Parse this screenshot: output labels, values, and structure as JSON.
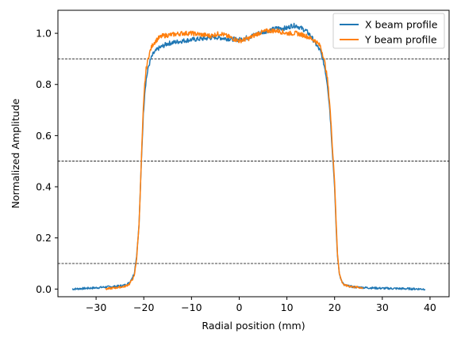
{
  "chart_data": {
    "type": "line",
    "xlabel": "Radial position (mm)",
    "ylabel": "Normalized Amplitude",
    "xlim": [
      -38,
      44
    ],
    "ylim": [
      -0.03,
      1.09
    ],
    "xticks": [
      -30,
      -20,
      -10,
      0,
      10,
      20,
      30,
      40
    ],
    "yticks": [
      0.0,
      0.2,
      0.4,
      0.6,
      0.8,
      1.0
    ],
    "xtick_labels": [
      "−30",
      "−20",
      "−10",
      "0",
      "10",
      "20",
      "30",
      "40"
    ],
    "ytick_labels": [
      "0.0",
      "0.2",
      "0.4",
      "0.6",
      "0.8",
      "1.0"
    ],
    "reference_lines": [
      0.9,
      0.5,
      0.1
    ],
    "grid": false,
    "legend": "top-right",
    "series": [
      {
        "name": "X beam profile",
        "color": "#1f77b4",
        "x": [
          -35,
          -32,
          -30,
          -28,
          -26,
          -24,
          -23,
          -22,
          -21.5,
          -21,
          -20.7,
          -20.4,
          -20.1,
          -19.8,
          -19.5,
          -19,
          -18.5,
          -18,
          -17,
          -15,
          -12,
          -10,
          -7,
          -5,
          -3,
          0,
          2,
          4,
          6,
          8,
          10,
          11,
          12,
          13,
          14,
          15,
          16,
          17,
          17.5,
          18,
          18.5,
          19,
          19.5,
          20,
          20.3,
          20.6,
          21,
          21.5,
          22,
          24,
          27,
          30,
          33,
          36,
          39
        ],
        "y": [
          0.0,
          0.003,
          0.005,
          0.008,
          0.01,
          0.015,
          0.025,
          0.06,
          0.13,
          0.25,
          0.4,
          0.55,
          0.68,
          0.77,
          0.82,
          0.87,
          0.9,
          0.92,
          0.94,
          0.96,
          0.97,
          0.975,
          0.98,
          0.985,
          0.98,
          0.975,
          0.985,
          1.0,
          1.01,
          1.02,
          1.02,
          1.03,
          1.03,
          1.02,
          1.01,
          0.99,
          0.96,
          0.93,
          0.9,
          0.86,
          0.8,
          0.7,
          0.55,
          0.4,
          0.25,
          0.13,
          0.06,
          0.03,
          0.015,
          0.008,
          0.005,
          0.003,
          0.002,
          0.001,
          0.0
        ]
      },
      {
        "name": "Y beam profile",
        "color": "#ff7f0e",
        "x": [
          -28,
          -26,
          -24,
          -23,
          -22,
          -21.5,
          -21,
          -20.7,
          -20.4,
          -20.1,
          -19.8,
          -19.5,
          -19,
          -18.5,
          -18,
          -17,
          -16,
          -14,
          -12,
          -10,
          -8,
          -6,
          -4,
          -2,
          0,
          2,
          4,
          6,
          8,
          10,
          12,
          14,
          15,
          16,
          17,
          17.5,
          18,
          18.5,
          19,
          19.5,
          20,
          20.3,
          20.6,
          21,
          21.5,
          22,
          24,
          26
        ],
        "y": [
          0.0,
          0.005,
          0.01,
          0.02,
          0.05,
          0.12,
          0.25,
          0.4,
          0.56,
          0.7,
          0.8,
          0.86,
          0.91,
          0.94,
          0.96,
          0.98,
          0.99,
          0.995,
          1.0,
          1.0,
          0.995,
          0.99,
          1.0,
          0.985,
          0.97,
          0.98,
          1.0,
          1.01,
          1.01,
          1.0,
          1.0,
          0.99,
          0.98,
          0.97,
          0.95,
          0.92,
          0.88,
          0.82,
          0.72,
          0.57,
          0.42,
          0.27,
          0.14,
          0.06,
          0.03,
          0.015,
          0.008,
          0.005
        ]
      }
    ]
  }
}
